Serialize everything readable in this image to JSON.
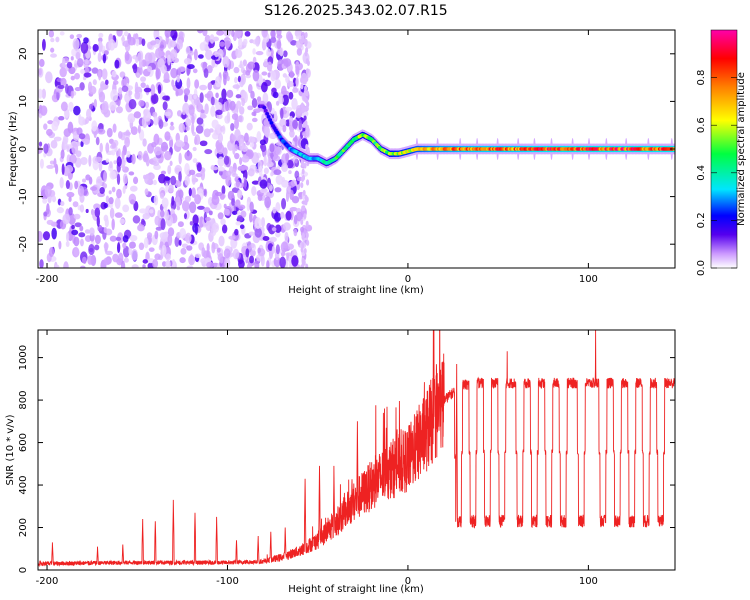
{
  "title": "S126.2025.343.02.07.R15",
  "colormap": [
    "#ffffff",
    "#cc99ff",
    "#5500ee",
    "#0000ff",
    "#00e5ff",
    "#00ff40",
    "#ffff00",
    "#ff8000",
    "#ff0000",
    "#ff00ff"
  ],
  "line_color": "#ee2222",
  "chart_data": [
    {
      "type": "heatmap",
      "title": "S126.2025.343.02.07.R15",
      "xlabel": "Height of straight line (km)",
      "ylabel": "Frequency (Hz)",
      "xlim": [
        -205,
        148
      ],
      "ylim": [
        -25,
        25
      ],
      "xticks": [
        -200,
        -100,
        0,
        100
      ],
      "yticks": [
        -20,
        -10,
        0,
        10,
        20
      ],
      "colorbar": {
        "label": "Normalized spectral amplitude",
        "range": [
          0,
          1
        ],
        "ticks": [
          0.0,
          0.2,
          0.4,
          0.6,
          0.8
        ]
      },
      "ridge": {
        "x": [
          -80,
          -75,
          -70,
          -65,
          -60,
          -55,
          -50,
          -45,
          -40,
          -35,
          -30,
          -25,
          -20,
          -15,
          -10,
          -5,
          0,
          5,
          10,
          20,
          40,
          60,
          80,
          100,
          120,
          148
        ],
        "freq": [
          9,
          5,
          2,
          0,
          -1,
          -2,
          -2,
          -3,
          -2,
          0,
          2,
          3,
          2,
          0,
          -1,
          -1,
          -0.5,
          0,
          0,
          0,
          0,
          0,
          0,
          0,
          0,
          0
        ],
        "amplitude": [
          0.15,
          0.2,
          0.25,
          0.3,
          0.35,
          0.3,
          0.35,
          0.4,
          0.45,
          0.5,
          0.5,
          0.55,
          0.5,
          0.5,
          0.55,
          0.6,
          0.6,
          0.65,
          0.7,
          0.75,
          0.8,
          0.8,
          0.85,
          0.85,
          0.85,
          0.85
        ]
      },
      "noise_region_x": [
        -205,
        -55
      ]
    },
    {
      "type": "line",
      "xlabel": "Height of straight line (km)",
      "ylabel": "SNR (10 * v/v)",
      "xlim": [
        -205,
        148
      ],
      "ylim": [
        0,
        1130
      ],
      "xticks": [
        -200,
        -100,
        0,
        100
      ],
      "yticks": [
        0,
        200,
        400,
        600,
        800,
        1000
      ],
      "envelope": {
        "x": [
          -205,
          -150,
          -100,
          -80,
          -70,
          -60,
          -50,
          -40,
          -30,
          -20,
          -10,
          0,
          10,
          20,
          30,
          40,
          60,
          80,
          100,
          120,
          148
        ],
        "y": [
          30,
          35,
          35,
          40,
          60,
          90,
          140,
          220,
          320,
          400,
          470,
          520,
          650,
          800,
          870,
          880,
          880,
          880,
          880,
          880,
          880
        ]
      },
      "dips_x": [
        28,
        36,
        44,
        52,
        62,
        70,
        78,
        86,
        96,
        108,
        116,
        124,
        132,
        140
      ],
      "spikes": [
        {
          "x": -197,
          "y": 130
        },
        {
          "x": -172,
          "y": 110
        },
        {
          "x": -158,
          "y": 120
        },
        {
          "x": -147,
          "y": 240
        },
        {
          "x": -140,
          "y": 230
        },
        {
          "x": -130,
          "y": 330
        },
        {
          "x": -118,
          "y": 270
        },
        {
          "x": -106,
          "y": 250
        },
        {
          "x": -95,
          "y": 140
        },
        {
          "x": -83,
          "y": 160
        },
        {
          "x": -76,
          "y": 180
        },
        {
          "x": -68,
          "y": 200
        },
        {
          "x": -57,
          "y": 430
        },
        {
          "x": -49,
          "y": 490
        },
        {
          "x": -41,
          "y": 490
        },
        {
          "x": -28,
          "y": 700
        },
        {
          "x": -18,
          "y": 540
        },
        {
          "x": -12,
          "y": 670
        },
        {
          "x": 27,
          "y": 970
        },
        {
          "x": 55,
          "y": 1030
        },
        {
          "x": 104,
          "y": 1130
        }
      ]
    }
  ]
}
